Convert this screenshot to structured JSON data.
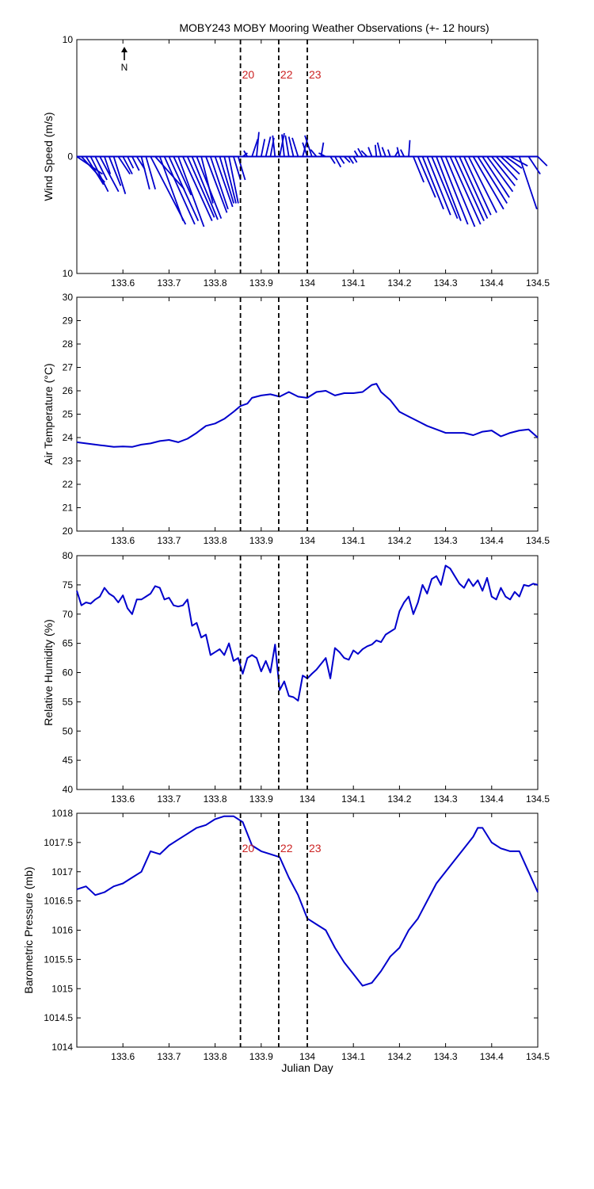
{
  "figure": {
    "title": "MOBY243 MOBY Mooring Weather Observations (+- 12 hours)",
    "north_label": "N"
  },
  "colors": {
    "data": "#0000cc",
    "marker_text": "#cc2222",
    "axis": "#000000"
  },
  "chart_data": [
    {
      "type": "line",
      "subtype": "wind-stick",
      "ylabel": "Wind Speed (m/s)",
      "xlim": [
        133.5,
        134.5
      ],
      "ylim": [
        -10,
        10
      ],
      "xticks": [
        133.6,
        133.7,
        133.8,
        133.9,
        134,
        134.1,
        134.2,
        134.3,
        134.4,
        134.5
      ],
      "xtick_labels": [
        "133.6",
        "133.7",
        "133.8",
        "133.9",
        "134",
        "134.1",
        "134.2",
        "134.3",
        "134.4",
        "134.5"
      ],
      "yticks": [
        10,
        0,
        -10
      ],
      "ytick_labels": [
        "10",
        "0",
        "10"
      ],
      "markers": [
        {
          "x": 133.855,
          "label": "20"
        },
        {
          "x": 133.938,
          "label": "22"
        },
        {
          "x": 134.0,
          "label": "23"
        }
      ],
      "vectors": [
        {
          "t": 133.5,
          "u": 2.2,
          "v": -1.5
        },
        {
          "t": 133.51,
          "u": 2.0,
          "v": -2.2
        },
        {
          "t": 133.52,
          "u": 1.5,
          "v": -2.4
        },
        {
          "t": 133.53,
          "u": 1.5,
          "v": -3.0
        },
        {
          "t": 133.54,
          "u": 1.0,
          "v": -2.0
        },
        {
          "t": 133.55,
          "u": 1.6,
          "v": -3.0
        },
        {
          "t": 133.56,
          "u": 0.5,
          "v": -1.5
        },
        {
          "t": 133.57,
          "u": 1.0,
          "v": -2.5
        },
        {
          "t": 133.58,
          "u": 1.0,
          "v": -3.2
        },
        {
          "t": 133.59,
          "u": 1.0,
          "v": -1.5
        },
        {
          "t": 133.6,
          "u": 0.8,
          "v": -1.5
        },
        {
          "t": 133.61,
          "u": 0.5,
          "v": -1.0
        },
        {
          "t": 133.62,
          "u": 0.6,
          "v": -1.2
        },
        {
          "t": 133.63,
          "u": 0.7,
          "v": -1.1
        },
        {
          "t": 133.64,
          "u": 0.7,
          "v": -2.8
        },
        {
          "t": 133.65,
          "u": 0.8,
          "v": -2.8
        },
        {
          "t": 133.66,
          "u": 3.0,
          "v": -5.8
        },
        {
          "t": 133.67,
          "u": 2.5,
          "v": -2.8
        },
        {
          "t": 133.68,
          "u": 2.0,
          "v": -5.5
        },
        {
          "t": 133.69,
          "u": 2.6,
          "v": -5.8
        },
        {
          "t": 133.7,
          "u": 2.5,
          "v": -5.5
        },
        {
          "t": 133.71,
          "u": 1.5,
          "v": -3.3
        },
        {
          "t": 133.72,
          "u": 2.2,
          "v": -6.0
        },
        {
          "t": 133.73,
          "u": 2.5,
          "v": -5.5
        },
        {
          "t": 133.74,
          "u": 2.3,
          "v": -5.2
        },
        {
          "t": 133.75,
          "u": 2.2,
          "v": -5.4
        },
        {
          "t": 133.76,
          "u": 2.1,
          "v": -5.3
        },
        {
          "t": 133.77,
          "u": 1.0,
          "v": -4.0
        },
        {
          "t": 133.78,
          "u": 1.8,
          "v": -4.8
        },
        {
          "t": 133.79,
          "u": 1.5,
          "v": -4.5
        },
        {
          "t": 133.8,
          "u": 1.5,
          "v": -4.3
        },
        {
          "t": 133.81,
          "u": 1.2,
          "v": -4.0
        },
        {
          "t": 133.82,
          "u": 1.0,
          "v": -4.0
        },
        {
          "t": 133.83,
          "u": 0.8,
          "v": -4.0
        },
        {
          "t": 133.84,
          "u": 0.6,
          "v": -2.0
        },
        {
          "t": 133.85,
          "u": 0.6,
          "v": -2.0
        },
        {
          "t": 133.86,
          "u": 0.4,
          "v": 0.3
        },
        {
          "t": 133.87,
          "u": -0.3,
          "v": 0.5
        },
        {
          "t": 133.88,
          "u": 0.5,
          "v": 1.5
        },
        {
          "t": 133.89,
          "u": 0.2,
          "v": 2.1
        },
        {
          "t": 133.9,
          "u": 0.3,
          "v": 1.5
        },
        {
          "t": 133.91,
          "u": 0.4,
          "v": 1.7
        },
        {
          "t": 133.92,
          "u": 0.3,
          "v": 1.6
        },
        {
          "t": 133.93,
          "u": -0.2,
          "v": 1.8
        },
        {
          "t": 133.94,
          "u": 0.4,
          "v": 2.0
        },
        {
          "t": 133.95,
          "u": -0.2,
          "v": 1.9
        },
        {
          "t": 133.96,
          "u": -0.3,
          "v": 1.8
        },
        {
          "t": 133.97,
          "u": -0.4,
          "v": 1.7
        },
        {
          "t": 133.98,
          "u": -0.5,
          "v": 1.6
        },
        {
          "t": 133.99,
          "u": 0.4,
          "v": 1.5
        },
        {
          "t": 134.0,
          "u": -0.4,
          "v": 1.2
        },
        {
          "t": 134.01,
          "u": -0.6,
          "v": 1.8
        },
        {
          "t": 134.02,
          "u": -0.5,
          "v": 0.6
        },
        {
          "t": 134.03,
          "u": 0.2,
          "v": 1.2
        },
        {
          "t": 134.04,
          "u": -0.6,
          "v": 0.3
        },
        {
          "t": 134.05,
          "u": 0.4,
          "v": -0.6
        },
        {
          "t": 134.06,
          "u": 0.5,
          "v": -0.9
        },
        {
          "t": 134.07,
          "u": 0.4,
          "v": -0.6
        },
        {
          "t": 134.08,
          "u": 0.5,
          "v": -0.5
        },
        {
          "t": 134.09,
          "u": 0.4,
          "v": -0.6
        },
        {
          "t": 134.1,
          "u": 0.3,
          "v": -0.5
        },
        {
          "t": 134.11,
          "u": -0.3,
          "v": 0.5
        },
        {
          "t": 134.12,
          "u": -0.4,
          "v": 0.7
        },
        {
          "t": 134.13,
          "u": -0.5,
          "v": 0.5
        },
        {
          "t": 134.14,
          "u": -0.3,
          "v": 0.8
        },
        {
          "t": 134.15,
          "u": -0.1,
          "v": 1.0
        },
        {
          "t": 134.16,
          "u": -0.3,
          "v": 1.2
        },
        {
          "t": 134.17,
          "u": -0.3,
          "v": 0.8
        },
        {
          "t": 134.18,
          "u": -0.2,
          "v": 0.6
        },
        {
          "t": 134.19,
          "u": 0.3,
          "v": 0.5
        },
        {
          "t": 134.2,
          "u": -0.2,
          "v": 0.8
        },
        {
          "t": 134.21,
          "u": -0.3,
          "v": 0.6
        },
        {
          "t": 134.22,
          "u": 0.1,
          "v": 1.4
        },
        {
          "t": 134.23,
          "u": 0.9,
          "v": -2.2
        },
        {
          "t": 134.24,
          "u": 1.5,
          "v": -3.5
        },
        {
          "t": 134.25,
          "u": 1.8,
          "v": -4.5
        },
        {
          "t": 134.26,
          "u": 2.0,
          "v": -5.0
        },
        {
          "t": 134.27,
          "u": 2.2,
          "v": -5.3
        },
        {
          "t": 134.28,
          "u": 2.1,
          "v": -5.5
        },
        {
          "t": 134.29,
          "u": 2.3,
          "v": -5.8
        },
        {
          "t": 134.3,
          "u": 2.5,
          "v": -6.0
        },
        {
          "t": 134.31,
          "u": 2.6,
          "v": -5.8
        },
        {
          "t": 134.32,
          "u": 2.5,
          "v": -5.5
        },
        {
          "t": 134.33,
          "u": 2.4,
          "v": -5.3
        },
        {
          "t": 134.34,
          "u": 2.3,
          "v": -5.0
        },
        {
          "t": 134.35,
          "u": 2.4,
          "v": -4.8
        },
        {
          "t": 134.36,
          "u": 2.6,
          "v": -4.5
        },
        {
          "t": 134.37,
          "u": 2.5,
          "v": -4.0
        },
        {
          "t": 134.38,
          "u": 2.3,
          "v": -3.5
        },
        {
          "t": 134.39,
          "u": 2.2,
          "v": -3.0
        },
        {
          "t": 134.4,
          "u": 2.0,
          "v": -2.5
        },
        {
          "t": 134.41,
          "u": 1.8,
          "v": -2.0
        },
        {
          "t": 134.42,
          "u": 1.6,
          "v": -1.5
        },
        {
          "t": 134.43,
          "u": 1.4,
          "v": -1.0
        },
        {
          "t": 134.44,
          "u": 1.5,
          "v": -0.8
        },
        {
          "t": 134.46,
          "u": 1.5,
          "v": -4.5
        },
        {
          "t": 134.48,
          "u": 1.0,
          "v": -1.5
        },
        {
          "t": 134.5,
          "u": 0.8,
          "v": -0.8
        }
      ]
    },
    {
      "type": "line",
      "ylabel": "Air Temperature (°C)",
      "xlim": [
        133.5,
        134.5
      ],
      "ylim": [
        20,
        30
      ],
      "xticks": [
        133.6,
        133.7,
        133.8,
        133.9,
        134,
        134.1,
        134.2,
        134.3,
        134.4,
        134.5
      ],
      "xtick_labels": [
        "133.6",
        "133.7",
        "133.8",
        "133.9",
        "134",
        "134.1",
        "134.2",
        "134.3",
        "134.4",
        "134.5"
      ],
      "yticks": [
        20,
        21,
        22,
        23,
        24,
        25,
        26,
        27,
        28,
        29,
        30
      ],
      "ytick_labels": [
        "20",
        "21",
        "22",
        "23",
        "24",
        "25",
        "26",
        "27",
        "28",
        "29",
        "30"
      ],
      "markers": [
        {
          "x": 133.855
        },
        {
          "x": 133.938
        },
        {
          "x": 134.0
        }
      ],
      "x": [
        133.5,
        133.52,
        133.54,
        133.56,
        133.58,
        133.6,
        133.62,
        133.64,
        133.66,
        133.68,
        133.7,
        133.72,
        133.74,
        133.76,
        133.78,
        133.8,
        133.82,
        133.84,
        133.855,
        133.87,
        133.88,
        133.9,
        133.92,
        133.94,
        133.96,
        133.98,
        134.0,
        134.02,
        134.04,
        134.06,
        134.08,
        134.1,
        134.12,
        134.14,
        134.15,
        134.16,
        134.18,
        134.2,
        134.22,
        134.24,
        134.26,
        134.28,
        134.3,
        134.32,
        134.34,
        134.36,
        134.38,
        134.4,
        134.42,
        134.44,
        134.46,
        134.48,
        134.5
      ],
      "series": [
        {
          "values": [
            23.8,
            23.75,
            23.7,
            23.65,
            23.6,
            23.62,
            23.6,
            23.7,
            23.75,
            23.85,
            23.9,
            23.8,
            23.95,
            24.2,
            24.5,
            24.6,
            24.8,
            25.1,
            25.35,
            25.45,
            25.7,
            25.8,
            25.85,
            25.75,
            25.95,
            25.75,
            25.7,
            25.95,
            26.0,
            25.8,
            25.9,
            25.9,
            25.95,
            26.25,
            26.3,
            25.95,
            25.6,
            25.1,
            24.9,
            24.7,
            24.5,
            24.35,
            24.2,
            24.2,
            24.2,
            24.1,
            24.25,
            24.3,
            24.05,
            24.2,
            24.3,
            24.35,
            24.0
          ]
        }
      ]
    },
    {
      "type": "line",
      "ylabel": "Relative Humidity (%)",
      "xlim": [
        133.5,
        134.5
      ],
      "ylim": [
        40,
        80
      ],
      "xticks": [
        133.6,
        133.7,
        133.8,
        133.9,
        134,
        134.1,
        134.2,
        134.3,
        134.4,
        134.5
      ],
      "xtick_labels": [
        "133.6",
        "133.7",
        "133.8",
        "133.9",
        "134",
        "134.1",
        "134.2",
        "134.3",
        "134.4",
        "134.5"
      ],
      "yticks": [
        40,
        45,
        50,
        55,
        60,
        65,
        70,
        75,
        80
      ],
      "ytick_labels": [
        "40",
        "45",
        "50",
        "55",
        "60",
        "65",
        "70",
        "75",
        "80"
      ],
      "markers": [
        {
          "x": 133.855
        },
        {
          "x": 133.938
        },
        {
          "x": 134.0
        }
      ],
      "x": [
        133.5,
        133.51,
        133.52,
        133.53,
        133.54,
        133.55,
        133.56,
        133.57,
        133.58,
        133.59,
        133.6,
        133.61,
        133.62,
        133.63,
        133.64,
        133.65,
        133.66,
        133.67,
        133.68,
        133.69,
        133.7,
        133.71,
        133.72,
        133.73,
        133.74,
        133.75,
        133.76,
        133.77,
        133.78,
        133.79,
        133.8,
        133.81,
        133.82,
        133.83,
        133.84,
        133.85,
        133.86,
        133.87,
        133.88,
        133.89,
        133.9,
        133.91,
        133.92,
        133.93,
        133.94,
        133.95,
        133.96,
        133.97,
        133.98,
        133.99,
        134.0,
        134.01,
        134.02,
        134.03,
        134.04,
        134.05,
        134.06,
        134.07,
        134.08,
        134.09,
        134.1,
        134.11,
        134.12,
        134.13,
        134.14,
        134.15,
        134.16,
        134.17,
        134.18,
        134.19,
        134.2,
        134.21,
        134.22,
        134.23,
        134.24,
        134.25,
        134.26,
        134.27,
        134.28,
        134.29,
        134.3,
        134.31,
        134.32,
        134.33,
        134.34,
        134.35,
        134.36,
        134.37,
        134.38,
        134.39,
        134.4,
        134.41,
        134.42,
        134.43,
        134.44,
        134.45,
        134.46,
        134.47,
        134.48,
        134.49,
        134.5
      ],
      "series": [
        {
          "values": [
            74,
            71.5,
            72,
            71.8,
            72.5,
            73,
            74.5,
            73.5,
            73,
            72,
            73.2,
            71,
            70,
            72.5,
            72.5,
            73,
            73.5,
            74.8,
            74.5,
            72.5,
            72.8,
            71.5,
            71.3,
            71.5,
            72.5,
            68,
            68.5,
            66,
            66.5,
            63,
            63.5,
            64,
            63,
            65,
            62,
            62.5,
            59.8,
            62.5,
            63,
            62.5,
            60.2,
            62,
            60,
            64.8,
            57,
            58.5,
            56,
            55.8,
            55.2,
            59.5,
            59,
            59.8,
            60.5,
            61.5,
            62.5,
            59,
            64.2,
            63.5,
            62.5,
            62.2,
            63.8,
            63.2,
            64,
            64.5,
            64.8,
            65.5,
            65.2,
            66.5,
            67,
            67.5,
            70.5,
            72,
            73,
            70,
            72,
            75,
            73.5,
            76,
            76.5,
            75,
            78.3,
            77.8,
            76.5,
            75.2,
            74.5,
            76,
            74.8,
            75.8,
            74,
            76.2,
            73,
            72.5,
            74.5,
            73,
            72.5,
            73.8,
            73,
            75,
            74.8,
            75.2,
            75
          ]
        }
      ]
    },
    {
      "type": "line",
      "ylabel": "Barometric Pressure (mb)",
      "xlabel": "Julian Day",
      "xlim": [
        133.5,
        134.5
      ],
      "ylim": [
        1014,
        1018
      ],
      "xticks": [
        133.6,
        133.7,
        133.8,
        133.9,
        134,
        134.1,
        134.2,
        134.3,
        134.4,
        134.5
      ],
      "xtick_labels": [
        "133.6",
        "133.7",
        "133.8",
        "133.9",
        "134",
        "134.1",
        "134.2",
        "134.3",
        "134.4",
        "134.5"
      ],
      "yticks": [
        1014,
        1014.5,
        1015,
        1015.5,
        1016,
        1016.5,
        1017,
        1017.5,
        1018
      ],
      "ytick_labels": [
        "1014",
        "1014.5",
        "1015",
        "1015.5",
        "1016",
        "1016.5",
        "1017",
        "1017.5",
        "1018"
      ],
      "markers": [
        {
          "x": 133.855,
          "label": "20"
        },
        {
          "x": 133.938,
          "label": "22"
        },
        {
          "x": 134.0,
          "label": "23"
        }
      ],
      "x": [
        133.5,
        133.52,
        133.54,
        133.56,
        133.58,
        133.6,
        133.62,
        133.64,
        133.66,
        133.68,
        133.7,
        133.72,
        133.74,
        133.76,
        133.78,
        133.8,
        133.82,
        133.84,
        133.86,
        133.88,
        133.9,
        133.92,
        133.94,
        133.96,
        133.98,
        134.0,
        134.02,
        134.04,
        134.06,
        134.08,
        134.1,
        134.12,
        134.14,
        134.16,
        134.18,
        134.2,
        134.22,
        134.24,
        134.26,
        134.28,
        134.3,
        134.32,
        134.34,
        134.36,
        134.37,
        134.38,
        134.4,
        134.42,
        134.44,
        134.46,
        134.48,
        134.5
      ],
      "series": [
        {
          "values": [
            1016.7,
            1016.75,
            1016.6,
            1016.65,
            1016.75,
            1016.8,
            1016.9,
            1017.0,
            1017.35,
            1017.3,
            1017.45,
            1017.55,
            1017.65,
            1017.75,
            1017.8,
            1017.9,
            1017.95,
            1017.95,
            1017.85,
            1017.45,
            1017.35,
            1017.3,
            1017.25,
            1016.9,
            1016.6,
            1016.2,
            1016.1,
            1016.0,
            1015.7,
            1015.45,
            1015.25,
            1015.05,
            1015.1,
            1015.3,
            1015.55,
            1015.7,
            1016.0,
            1016.2,
            1016.5,
            1016.8,
            1017.0,
            1017.2,
            1017.4,
            1017.6,
            1017.75,
            1017.75,
            1017.5,
            1017.4,
            1017.35,
            1017.35,
            1017.0,
            1016.65
          ]
        }
      ]
    }
  ]
}
